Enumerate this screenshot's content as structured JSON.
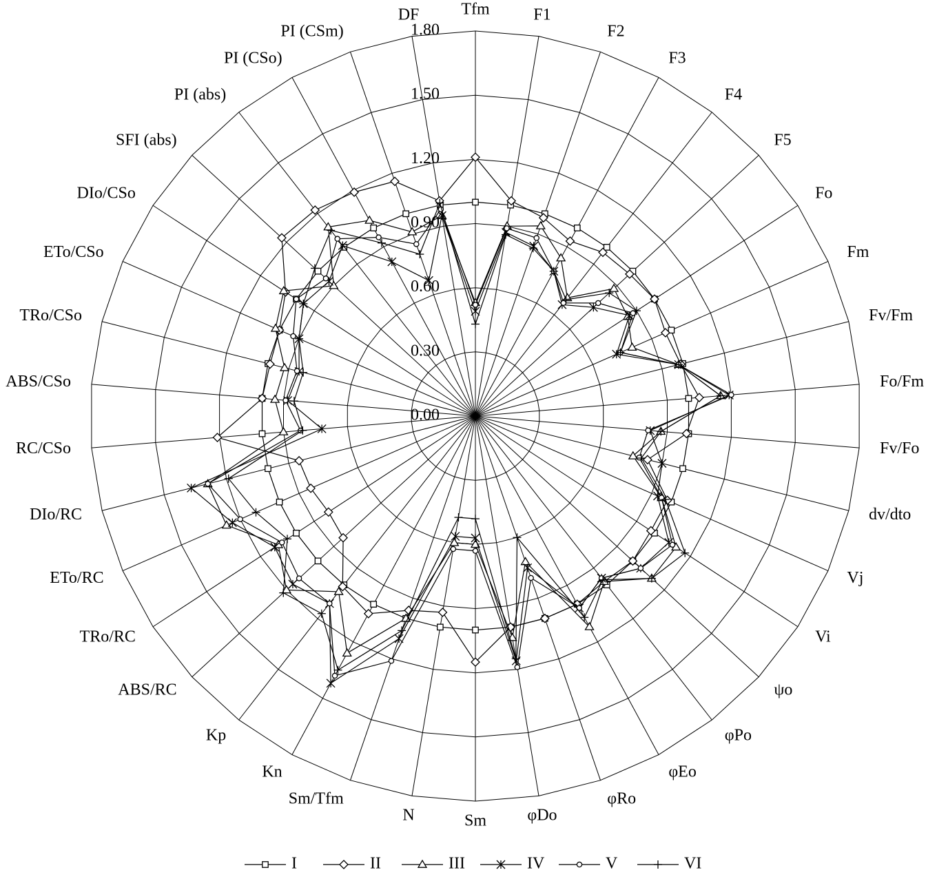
{
  "chart_data": {
    "type": "radar",
    "categories": [
      "Tfm",
      "F1",
      "F2",
      "F3",
      "F4",
      "F5",
      "Fo",
      "Fm",
      "Fv/Fm",
      "Fo/Fm",
      "Fv/Fo",
      "dv/dto",
      "Vj",
      "Vi",
      "ψo",
      "φPo",
      "φEo",
      "φRo",
      "φDo",
      "Sm",
      "N",
      "Sm/Tfm",
      "Kn",
      "Kp",
      "ABS/RC",
      "TRo/RC",
      "ETo/RC",
      "DIo/RC",
      "RC/CSo",
      "ABS/CSo",
      "TRo/CSo",
      "ETo/CSo",
      "DIo/CSo",
      "SFI (abs)",
      "PI (abs)",
      "PI (CSo)",
      "PI (CSm)",
      "DF"
    ],
    "ylim": [
      0,
      1.8
    ],
    "yticks": [
      {
        "value": 0,
        "label": "0.00"
      },
      {
        "value": 0.3,
        "label": "0.30"
      },
      {
        "value": 0.6,
        "label": "0.60"
      },
      {
        "value": 0.9,
        "label": "0.90"
      },
      {
        "value": 1.2,
        "label": "1.20"
      },
      {
        "value": 1.5,
        "label": "1.50"
      },
      {
        "value": 1.8,
        "label": "1.80"
      }
    ],
    "grid": true,
    "legend": "bottom",
    "series": [
      {
        "name": "I",
        "color": "#000000",
        "marker": "square",
        "values": [
          1.0,
          1.0,
          1.0,
          1.0,
          1.0,
          1.0,
          1.0,
          1.0,
          1.0,
          1.0,
          1.0,
          1.0,
          1.0,
          1.0,
          1.0,
          1.0,
          1.0,
          1.0,
          1.0,
          1.0,
          1.0,
          1.0,
          1.0,
          1.0,
          1.0,
          1.0,
          1.0,
          1.0,
          1.0,
          1.0,
          1.0,
          1.0,
          1.0,
          1.0,
          1.0,
          1.0,
          1.0,
          1.0
        ]
      },
      {
        "name": "II",
        "color": "#000000",
        "marker": "diamond",
        "values": [
          1.21,
          1.02,
          0.98,
          0.93,
          0.97,
          0.98,
          1.0,
          0.97,
          0.99,
          1.05,
          0.99,
          0.83,
          0.98,
          0.98,
          1.0,
          0.98,
          1.0,
          1.0,
          1.0,
          1.15,
          0.93,
          0.96,
          1.05,
          1.01,
          0.84,
          0.82,
          0.84,
          0.85,
          1.21,
          1.0,
          0.99,
          1.0,
          1.06,
          1.23,
          1.22,
          1.19,
          1.16,
          1.02
        ]
      },
      {
        "name": "III",
        "color": "#000000",
        "marker": "triangle",
        "values": [
          0.53,
          0.9,
          0.94,
          0.84,
          0.7,
          0.88,
          0.85,
          0.8,
          0.98,
          1.15,
          0.87,
          0.76,
          0.95,
          1.12,
          1.12,
          0.98,
          1.12,
          0.72,
          1.05,
          0.6,
          0.6,
          1.0,
          1.26,
          1.04,
          1.2,
          1.1,
          1.27,
          1.29,
          0.9,
          0.94,
          0.92,
          1.02,
          1.07,
          0.9,
          1.12,
          1.04,
          0.91,
          0.95
        ]
      },
      {
        "name": "IV",
        "color": "#000000",
        "marker": "asterisk",
        "values": [
          0.49,
          0.87,
          0.84,
          0.77,
          0.66,
          0.75,
          0.86,
          0.72,
          0.98,
          1.19,
          0.82,
          0.9,
          0.93,
          1.08,
          1.05,
          0.96,
          1.02,
          0.75,
          1.16,
          0.57,
          0.57,
          1.1,
          1.42,
          1.11,
          1.16,
          1.12,
          1.24,
          1.37,
          0.72,
          0.88,
          0.85,
          0.9,
          0.96,
          0.93,
          1.01,
          0.82,
          0.67,
          0.95
        ]
      },
      {
        "name": "V",
        "color": "#000000",
        "marker": "circle",
        "values": [
          0.52,
          0.89,
          0.88,
          0.77,
          0.67,
          0.78,
          0.88,
          0.74,
          0.98,
          1.2,
          0.81,
          0.79,
          0.95,
          1.1,
          1.05,
          0.96,
          1.02,
          0.8,
          1.19,
          0.63,
          0.63,
          1.21,
          1.38,
          1.11,
          1.12,
          1.08,
          1.2,
          1.29,
          0.82,
          0.89,
          0.86,
          0.93,
          1.0,
          0.95,
          1.05,
          0.95,
          0.85,
          0.98
        ]
      },
      {
        "name": "VI",
        "color": "#000000",
        "marker": "plus",
        "values": [
          0.43,
          0.86,
          0.83,
          0.77,
          0.69,
          0.85,
          0.9,
          0.74,
          0.98,
          1.15,
          0.87,
          0.8,
          0.97,
          1.17,
          1.12,
          0.97,
          1.07,
          0.6,
          1.15,
          0.48,
          0.48,
          1.06,
          1.35,
          1.17,
          1.22,
          1.05,
          1.12,
          1.19,
          0.81,
          0.85,
          0.83,
          0.9,
          0.96,
          1.02,
          1.1,
          0.92,
          0.8,
          1.01
        ]
      }
    ]
  }
}
